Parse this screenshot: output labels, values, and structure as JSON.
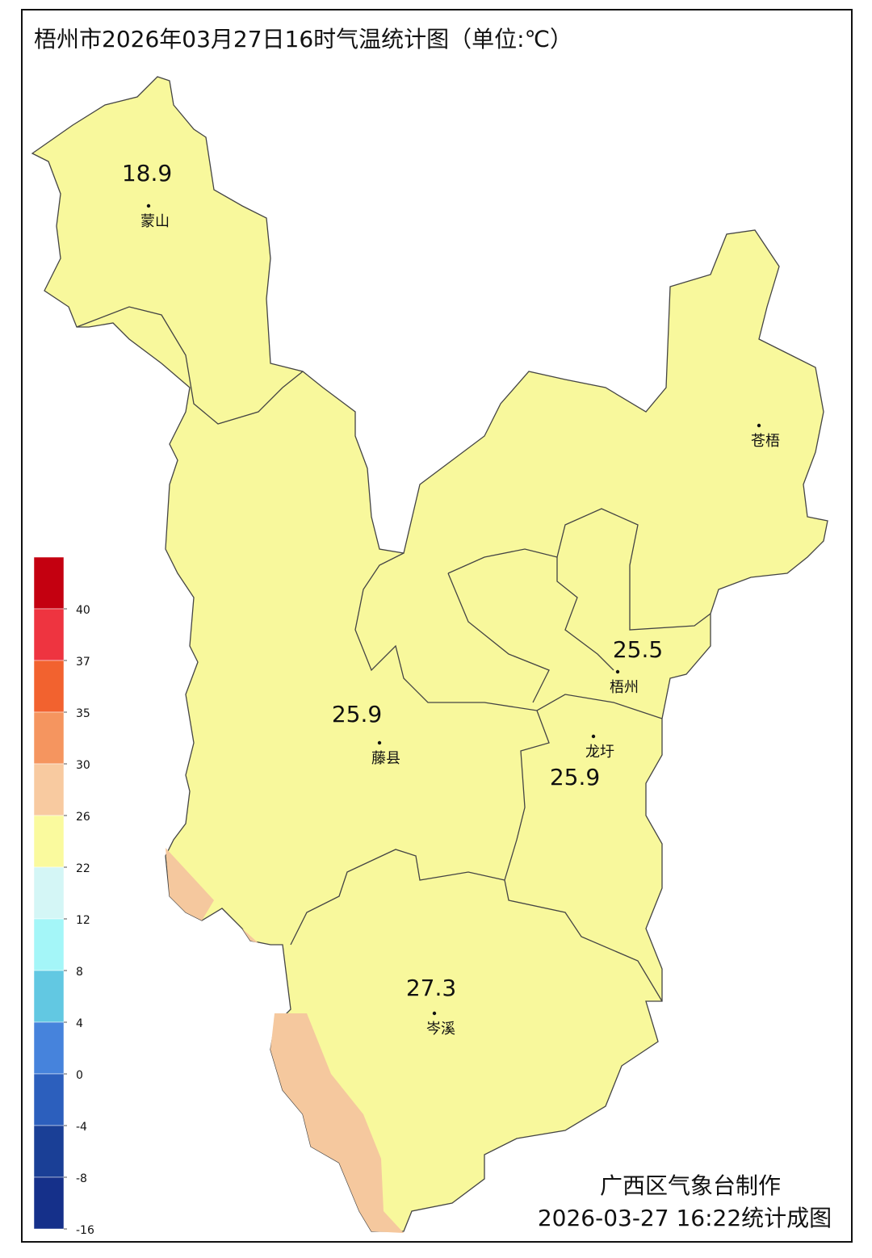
{
  "title": "梧州市2026年03月27日16时气温统计图（单位:℃）",
  "stations": [
    {
      "name": "蒙山",
      "value": 18.9
    },
    {
      "name": "苍梧"
    },
    {
      "name": "梧州",
      "value": 25.5
    },
    {
      "name": "藤县",
      "value": 25.9
    },
    {
      "name": "龙圩",
      "value": 25.9
    },
    {
      "name": "岑溪",
      "value": 27.3
    }
  ],
  "legend": {
    "colors": [
      "#c40010",
      "#ee3440",
      "#f2622f",
      "#f5955f",
      "#f8caa0",
      "#fafa9e",
      "#d4f6f6",
      "#a4f6f8",
      "#62c8e2",
      "#4683dc",
      "#2c5fbd",
      "#1a3f96",
      "#15308a"
    ],
    "ticks": [
      40,
      37,
      35,
      30,
      26,
      22,
      12,
      8,
      4,
      0,
      -4,
      -8,
      -16
    ]
  },
  "footer": {
    "producer": "广西区气象台制作",
    "timestamp": "2026-03-27 16:22统计成图"
  }
}
